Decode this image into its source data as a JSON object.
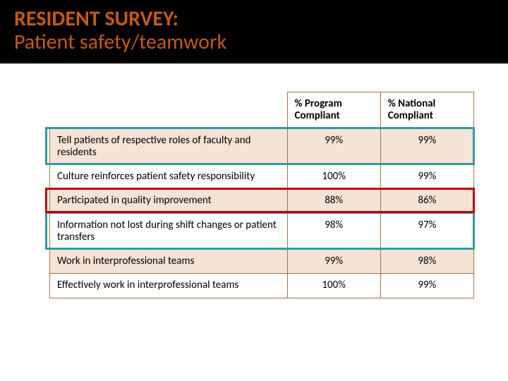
{
  "title": {
    "line1": "RESIDENT SURVEY:",
    "line2": "Patient safety/teamwork"
  },
  "table": {
    "columns": [
      "",
      "% Program Compliant",
      "% National Compliant"
    ],
    "rows": [
      {
        "metric": "Tell patients of respective roles of faculty and residents",
        "program": "99%",
        "national": "99%",
        "band": true
      },
      {
        "metric": "Culture reinforces patient safety responsibility",
        "program": "100%",
        "national": "99%",
        "band": false
      },
      {
        "metric": "Participated in quality improvement",
        "program": "88%",
        "national": "86%",
        "band": true
      },
      {
        "metric": "Information not lost during shift changes or patient transfers",
        "program": "98%",
        "national": "97%",
        "band": false
      },
      {
        "metric": "Work in interprofessional teams",
        "program": "99%",
        "national": "98%",
        "band": true
      },
      {
        "metric": "Effectively work in interprofessional teams",
        "program": "100%",
        "national": "99%",
        "band": false
      }
    ],
    "highlight_teal_rows": [
      0,
      3
    ],
    "highlight_red_rows": [
      2
    ],
    "colors": {
      "title_text": "#c55a11",
      "title_bg": "#000000",
      "border": "#a5714a",
      "band_bg": "#f5e3d6",
      "teal": "#2e9ca4",
      "red": "#c00000"
    }
  }
}
